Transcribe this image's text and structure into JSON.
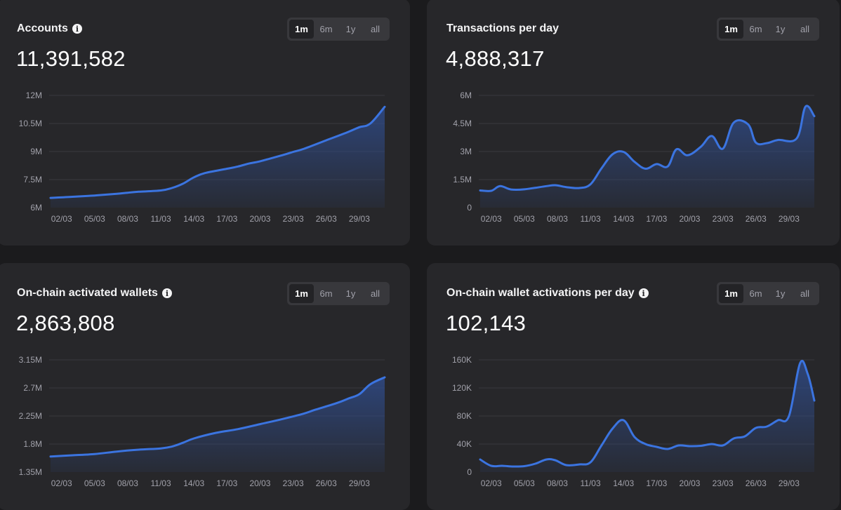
{
  "range_options": [
    "1m",
    "6m",
    "1y",
    "all"
  ],
  "active_range": "1m",
  "colors": {
    "line": "#3b74e0",
    "fill_top": "#2f4a86",
    "background": "#1b1b1d",
    "card": "#27272a"
  },
  "cards": [
    {
      "title": "Accounts",
      "info_icon": true,
      "value": "11,391,582"
    },
    {
      "title": "Transactions per day",
      "info_icon": false,
      "value": "4,888,317"
    },
    {
      "title": "On-chain activated wallets",
      "info_icon": true,
      "value": "2,863,808"
    },
    {
      "title": "On-chain wallet activations per day",
      "info_icon": true,
      "value": "102,143"
    }
  ],
  "chart_data": [
    {
      "type": "area",
      "title": "Accounts",
      "x_ticks": [
        "02/03",
        "05/03",
        "08/03",
        "11/03",
        "14/03",
        "17/03",
        "20/03",
        "23/03",
        "26/03",
        "29/03"
      ],
      "y_ticks": [
        "12M",
        "10.5M",
        "9M",
        "7.5M",
        "6M"
      ],
      "ylim": [
        6000000,
        12000000
      ],
      "x_range": [
        1,
        31.3
      ],
      "grid": true,
      "points": [
        [
          1,
          6520000
        ],
        [
          3,
          6580000
        ],
        [
          5,
          6650000
        ],
        [
          7,
          6740000
        ],
        [
          8,
          6800000
        ],
        [
          9,
          6850000
        ],
        [
          11,
          6920000
        ],
        [
          12,
          7050000
        ],
        [
          13,
          7280000
        ],
        [
          14,
          7620000
        ],
        [
          15,
          7850000
        ],
        [
          17,
          8080000
        ],
        [
          18,
          8200000
        ],
        [
          19,
          8360000
        ],
        [
          20,
          8480000
        ],
        [
          22,
          8800000
        ],
        [
          23,
          8980000
        ],
        [
          24,
          9150000
        ],
        [
          26,
          9600000
        ],
        [
          28,
          10050000
        ],
        [
          29,
          10300000
        ],
        [
          30,
          10500000
        ],
        [
          31.3,
          11390000
        ]
      ],
      "series_name": ""
    },
    {
      "type": "area",
      "title": "Transactions per day",
      "x_ticks": [
        "02/03",
        "05/03",
        "08/03",
        "11/03",
        "14/03",
        "17/03",
        "20/03",
        "23/03",
        "26/03",
        "29/03"
      ],
      "y_ticks": [
        "6M",
        "4.5M",
        "3M",
        "1.5M",
        "0"
      ],
      "ylim": [
        0,
        6000000
      ],
      "x_range": [
        1,
        31.3
      ],
      "grid": true,
      "points": [
        [
          1,
          920000
        ],
        [
          2,
          900000
        ],
        [
          2.8,
          1150000
        ],
        [
          3.8,
          970000
        ],
        [
          5,
          980000
        ],
        [
          7,
          1150000
        ],
        [
          7.8,
          1200000
        ],
        [
          8.8,
          1100000
        ],
        [
          10,
          1050000
        ],
        [
          11,
          1250000
        ],
        [
          12,
          2100000
        ],
        [
          13,
          2850000
        ],
        [
          14,
          2980000
        ],
        [
          15,
          2450000
        ],
        [
          16,
          2080000
        ],
        [
          17,
          2330000
        ],
        [
          18,
          2200000
        ],
        [
          18.8,
          3120000
        ],
        [
          19.8,
          2800000
        ],
        [
          21,
          3250000
        ],
        [
          22,
          3830000
        ],
        [
          23,
          3150000
        ],
        [
          24,
          4550000
        ],
        [
          25.3,
          4450000
        ],
        [
          26,
          3480000
        ],
        [
          27,
          3450000
        ],
        [
          28,
          3620000
        ],
        [
          29.7,
          3700000
        ],
        [
          30.5,
          5400000
        ],
        [
          31.3,
          4890000
        ]
      ],
      "series_name": ""
    },
    {
      "type": "area",
      "title": "On-chain activated wallets",
      "x_ticks": [
        "02/03",
        "05/03",
        "08/03",
        "11/03",
        "14/03",
        "17/03",
        "20/03",
        "23/03",
        "26/03",
        "29/03"
      ],
      "y_ticks": [
        "3.15M",
        "2.7M",
        "2.25M",
        "1.8M",
        "1.35M"
      ],
      "ylim": [
        1350000,
        3150000
      ],
      "x_range": [
        1,
        31.3
      ],
      "grid": true,
      "points": [
        [
          1,
          1600000
        ],
        [
          3,
          1620000
        ],
        [
          5,
          1640000
        ],
        [
          7,
          1680000
        ],
        [
          9,
          1710000
        ],
        [
          11,
          1730000
        ],
        [
          12,
          1760000
        ],
        [
          13,
          1820000
        ],
        [
          14,
          1890000
        ],
        [
          16,
          1980000
        ],
        [
          18,
          2040000
        ],
        [
          20,
          2120000
        ],
        [
          22,
          2200000
        ],
        [
          24,
          2290000
        ],
        [
          25,
          2350000
        ],
        [
          27,
          2460000
        ],
        [
          28,
          2530000
        ],
        [
          29,
          2600000
        ],
        [
          30,
          2760000
        ],
        [
          31.3,
          2870000
        ]
      ],
      "series_name": ""
    },
    {
      "type": "area",
      "title": "On-chain wallet activations per day",
      "x_ticks": [
        "02/03",
        "05/03",
        "08/03",
        "11/03",
        "14/03",
        "17/03",
        "20/03",
        "23/03",
        "26/03",
        "29/03"
      ],
      "y_ticks": [
        "160K",
        "120K",
        "80K",
        "40K",
        "0"
      ],
      "ylim": [
        0,
        160000
      ],
      "x_range": [
        1,
        31.3
      ],
      "grid": true,
      "points": [
        [
          1,
          18000
        ],
        [
          2,
          9000
        ],
        [
          3,
          9000
        ],
        [
          4,
          8000
        ],
        [
          5,
          8500
        ],
        [
          6,
          12000
        ],
        [
          7,
          18000
        ],
        [
          7.8,
          17000
        ],
        [
          8.8,
          10000
        ],
        [
          10,
          11000
        ],
        [
          11,
          14000
        ],
        [
          12,
          38000
        ],
        [
          13,
          62000
        ],
        [
          14,
          74000
        ],
        [
          15,
          50000
        ],
        [
          16,
          40000
        ],
        [
          17,
          36000
        ],
        [
          18,
          33000
        ],
        [
          19,
          38000
        ],
        [
          20,
          37000
        ],
        [
          21,
          37500
        ],
        [
          22,
          40000
        ],
        [
          23,
          38000
        ],
        [
          24,
          48000
        ],
        [
          25,
          51000
        ],
        [
          26,
          63000
        ],
        [
          27,
          65000
        ],
        [
          28,
          74000
        ],
        [
          29,
          80000
        ],
        [
          30,
          155000
        ],
        [
          30.7,
          140000
        ],
        [
          31.3,
          102000
        ]
      ],
      "series_name": ""
    }
  ]
}
